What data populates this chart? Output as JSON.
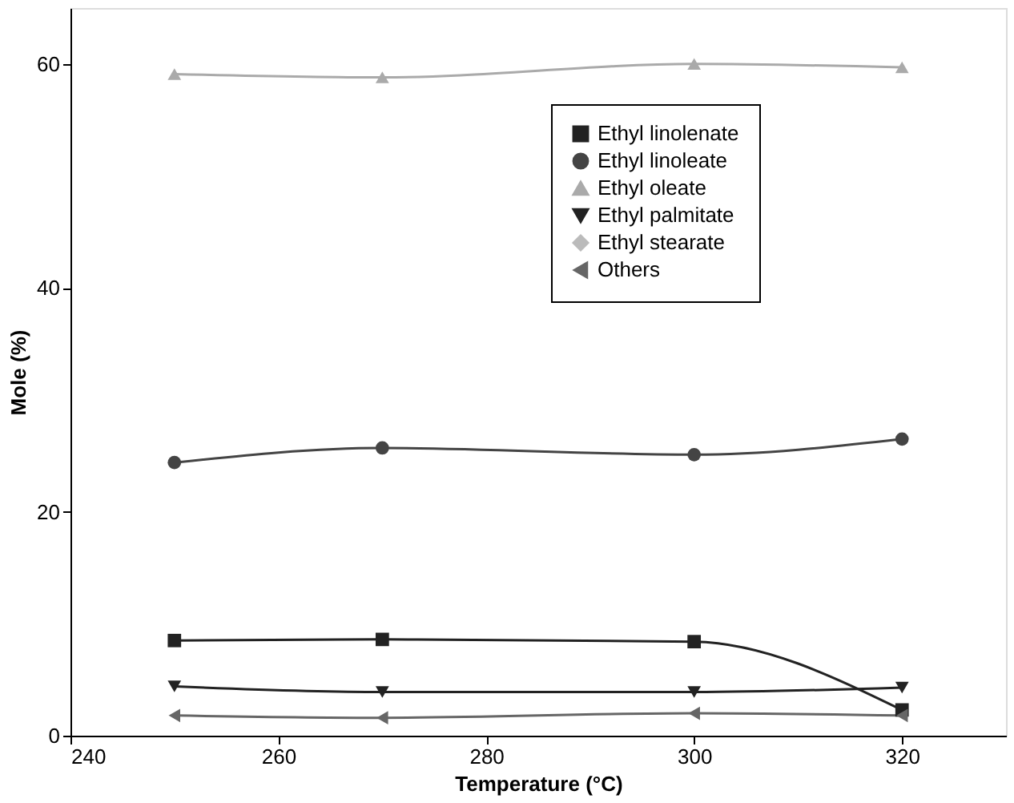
{
  "chart_data": {
    "type": "line",
    "xlabel": "Temperature (°C)",
    "ylabel": "Mole (%)",
    "x": [
      250,
      270,
      300,
      320
    ],
    "xlim": [
      240,
      330
    ],
    "xticks": [
      240,
      260,
      280,
      300,
      320
    ],
    "ylim": [
      0,
      65
    ],
    "yticks": [
      0,
      20,
      40,
      60
    ],
    "grid": false,
    "legend": "top right",
    "line_style": "solid",
    "series": [
      {
        "name": "Ethyl linolenate",
        "color": "#222222",
        "marker": "square",
        "values": [
          8.5,
          8.6,
          8.4,
          2.3
        ]
      },
      {
        "name": "Ethyl linoleate",
        "color": "#444444",
        "marker": "circle",
        "values": [
          24.4,
          25.7,
          25.1,
          26.5
        ]
      },
      {
        "name": "Ethyl oleate",
        "color": "#aaaaaa",
        "marker": "triangle",
        "values": [
          59.1,
          58.8,
          60.0,
          59.7
        ]
      },
      {
        "name": "Ethyl palmitate",
        "color": "#222222",
        "marker": "triangle-down",
        "values": [
          4.4,
          3.9,
          3.9,
          4.3
        ]
      },
      {
        "name": "Ethyl stearate",
        "color": "#bbbbbb",
        "marker": "diamond",
        "values": [
          null,
          null,
          null,
          null
        ]
      },
      {
        "name": "Others",
        "color": "#666666",
        "marker": "triangle-left",
        "values": [
          1.8,
          1.6,
          2.0,
          1.8
        ]
      }
    ]
  }
}
